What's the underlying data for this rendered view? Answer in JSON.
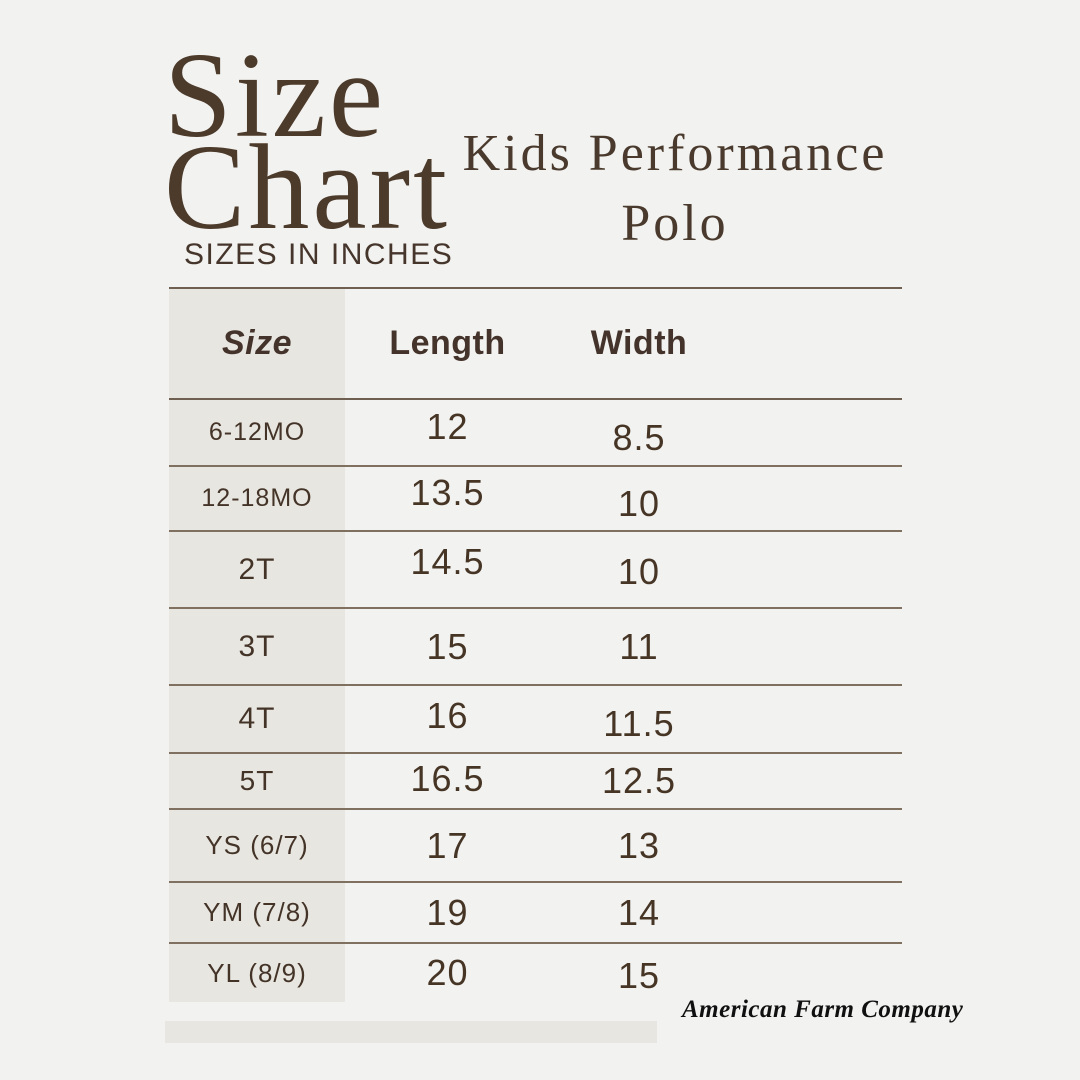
{
  "page": {
    "background_color": "#f2f2f0",
    "accent_beige": "#e8e6e1",
    "text_brown": "#46352a",
    "line_color": "#80705f"
  },
  "header": {
    "title_line1": "Size",
    "title_line2": "Chart",
    "subtitle": "SIZES IN INCHES",
    "product_title": "Kids Performance Polo"
  },
  "table": {
    "columns": [
      "Size",
      "Length",
      "Width"
    ],
    "rows": [
      {
        "size": "6-12MO",
        "length": "12",
        "width": "8.5"
      },
      {
        "size": "12-18MO",
        "length": "13.5",
        "width": "10"
      },
      {
        "size": "2T",
        "length": "14.5",
        "width": "10"
      },
      {
        "size": "3T",
        "length": "15",
        "width": "11"
      },
      {
        "size": "4T",
        "length": "16",
        "width": "11.5"
      },
      {
        "size": "5T",
        "length": "16.5",
        "width": "12.5"
      },
      {
        "size": "YS (6/7)",
        "length": "17",
        "width": "13"
      },
      {
        "size": "YM (7/8)",
        "length": "19",
        "width": "14"
      },
      {
        "size": "YL (8/9)",
        "length": "20",
        "width": "15"
      }
    ]
  },
  "footer": {
    "brand": "American Farm Company"
  },
  "chart_data": {
    "type": "table",
    "title": "Size Chart",
    "subtitle": "Kids Performance Polo",
    "units": "SIZES IN INCHES",
    "columns": [
      "Size",
      "Length",
      "Width"
    ],
    "rows": [
      [
        "6-12MO",
        12,
        8.5
      ],
      [
        "12-18MO",
        13.5,
        10
      ],
      [
        "2T",
        14.5,
        10
      ],
      [
        "3T",
        15,
        11
      ],
      [
        "4T",
        16,
        11.5
      ],
      [
        "5T",
        16.5,
        12.5
      ],
      [
        "YS (6/7)",
        17,
        13
      ],
      [
        "YM (7/8)",
        19,
        14
      ],
      [
        "YL (8/9)",
        20,
        15
      ]
    ]
  }
}
